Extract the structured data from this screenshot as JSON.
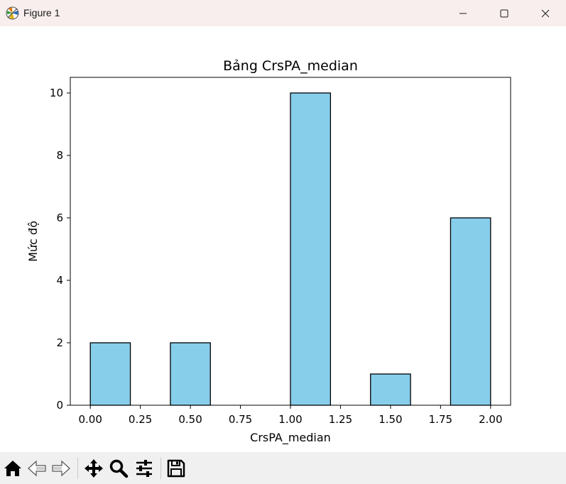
{
  "window": {
    "title": "Figure 1",
    "app_icon": "matplotlib-figure-icon"
  },
  "titlebar_buttons": [
    "minimize-icon",
    "maximize-icon",
    "close-icon"
  ],
  "toolbar": {
    "tools": [
      "home-icon",
      "back-arrow-icon",
      "forward-arrow-icon",
      "pan-move-icon",
      "zoom-magnifier-icon",
      "configure-subplots-icon",
      "save-floppy-icon"
    ]
  },
  "chart_data": {
    "type": "bar",
    "title": "Bảng CrsPA_median",
    "xlabel": "CrsPA_median",
    "ylabel": "Mức độ",
    "bins": [
      {
        "start": 0.0,
        "end": 0.2,
        "count": 2
      },
      {
        "start": 0.2,
        "end": 0.4,
        "count": 0
      },
      {
        "start": 0.4,
        "end": 0.6,
        "count": 2
      },
      {
        "start": 0.6,
        "end": 0.8,
        "count": 0
      },
      {
        "start": 0.8,
        "end": 1.0,
        "count": 0
      },
      {
        "start": 1.0,
        "end": 1.2,
        "count": 10
      },
      {
        "start": 1.2,
        "end": 1.4,
        "count": 0
      },
      {
        "start": 1.4,
        "end": 1.6,
        "count": 1
      },
      {
        "start": 1.6,
        "end": 1.8,
        "count": 0
      },
      {
        "start": 1.8,
        "end": 2.0,
        "count": 6
      }
    ],
    "xlim": [
      -0.1,
      2.1
    ],
    "ylim": [
      0,
      10.5
    ],
    "xticks": [
      "0.00",
      "0.25",
      "0.50",
      "0.75",
      "1.00",
      "1.25",
      "1.50",
      "1.75",
      "2.00"
    ],
    "yticks": [
      "0",
      "2",
      "4",
      "6",
      "8",
      "10"
    ],
    "bar_color": "#87ceeb",
    "edge_color": "#000000",
    "grid": false,
    "legend": "none"
  }
}
